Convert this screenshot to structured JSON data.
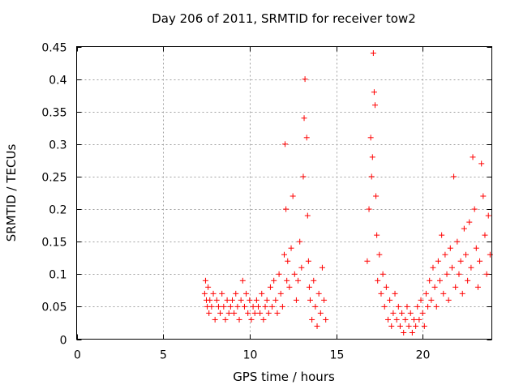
{
  "chart_data": {
    "type": "scatter",
    "title": "Day 206 of 2011, SRMTID for receiver tow2",
    "xlabel": "GPS time / hours",
    "ylabel": "SRMTID / TECUs",
    "xlim": [
      0,
      24
    ],
    "ylim": [
      0,
      0.45
    ],
    "xticks": [
      0,
      5,
      10,
      15,
      20
    ],
    "yticks": [
      0,
      0.05,
      0.1,
      0.15,
      0.2,
      0.25,
      0.3,
      0.35,
      0.4,
      0.45
    ],
    "grid": true,
    "marker": "+",
    "series": [
      {
        "name": "SRMTID tow2",
        "color": "#ff0000",
        "x": [
          7.4,
          7.45,
          7.5,
          7.55,
          7.6,
          7.65,
          7.7,
          7.8,
          7.9,
          8.0,
          8.1,
          8.2,
          8.3,
          8.4,
          8.5,
          8.6,
          8.7,
          8.8,
          8.9,
          9.0,
          9.1,
          9.2,
          9.3,
          9.4,
          9.5,
          9.6,
          9.7,
          9.8,
          9.9,
          10.0,
          10.1,
          10.2,
          10.3,
          10.4,
          10.5,
          10.6,
          10.7,
          10.8,
          10.9,
          11.0,
          11.1,
          11.2,
          11.3,
          11.4,
          11.5,
          11.6,
          11.7,
          11.8,
          11.9,
          12.0,
          12.05,
          12.1,
          12.15,
          12.2,
          12.3,
          12.4,
          12.5,
          12.6,
          12.7,
          12.8,
          12.9,
          13.0,
          13.1,
          13.15,
          13.2,
          13.3,
          13.35,
          13.4,
          13.45,
          13.5,
          13.6,
          13.7,
          13.8,
          13.9,
          14.0,
          14.1,
          14.2,
          14.3,
          14.4,
          16.8,
          16.9,
          17.0,
          17.05,
          17.1,
          17.15,
          17.2,
          17.25,
          17.3,
          17.35,
          17.4,
          17.5,
          17.6,
          17.7,
          17.8,
          17.9,
          18.0,
          18.1,
          18.2,
          18.3,
          18.4,
          18.5,
          18.6,
          18.7,
          18.8,
          18.9,
          19.0,
          19.1,
          19.2,
          19.3,
          19.4,
          19.5,
          19.6,
          19.7,
          19.8,
          19.9,
          20.0,
          20.1,
          20.2,
          20.3,
          20.4,
          20.5,
          20.6,
          20.7,
          20.8,
          20.9,
          21.0,
          21.1,
          21.2,
          21.3,
          21.4,
          21.5,
          21.6,
          21.7,
          21.8,
          21.9,
          22.0,
          22.1,
          22.2,
          22.3,
          22.4,
          22.5,
          22.6,
          22.7,
          22.8,
          22.9,
          23.0,
          23.1,
          23.2,
          23.3,
          23.4,
          23.5,
          23.6,
          23.7,
          23.8,
          23.9
        ],
        "y": [
          0.07,
          0.09,
          0.06,
          0.05,
          0.08,
          0.04,
          0.06,
          0.05,
          0.07,
          0.03,
          0.06,
          0.05,
          0.04,
          0.07,
          0.05,
          0.03,
          0.06,
          0.04,
          0.05,
          0.06,
          0.04,
          0.07,
          0.05,
          0.03,
          0.06,
          0.09,
          0.05,
          0.07,
          0.04,
          0.06,
          0.03,
          0.05,
          0.04,
          0.06,
          0.05,
          0.04,
          0.07,
          0.03,
          0.05,
          0.06,
          0.04,
          0.08,
          0.05,
          0.09,
          0.06,
          0.04,
          0.1,
          0.07,
          0.05,
          0.13,
          0.3,
          0.2,
          0.09,
          0.12,
          0.08,
          0.14,
          0.22,
          0.1,
          0.06,
          0.09,
          0.15,
          0.11,
          0.25,
          0.34,
          0.4,
          0.31,
          0.19,
          0.12,
          0.08,
          0.06,
          0.03,
          0.09,
          0.05,
          0.02,
          0.07,
          0.04,
          0.11,
          0.06,
          0.03,
          0.12,
          0.2,
          0.31,
          0.25,
          0.28,
          0.44,
          0.38,
          0.36,
          0.22,
          0.16,
          0.09,
          0.13,
          0.07,
          0.1,
          0.05,
          0.08,
          0.03,
          0.06,
          0.02,
          0.04,
          0.07,
          0.03,
          0.05,
          0.02,
          0.04,
          0.01,
          0.03,
          0.05,
          0.02,
          0.04,
          0.01,
          0.03,
          0.02,
          0.05,
          0.03,
          0.06,
          0.04,
          0.02,
          0.07,
          0.05,
          0.09,
          0.06,
          0.11,
          0.08,
          0.05,
          0.12,
          0.09,
          0.16,
          0.07,
          0.13,
          0.1,
          0.06,
          0.14,
          0.11,
          0.25,
          0.08,
          0.15,
          0.1,
          0.12,
          0.07,
          0.17,
          0.13,
          0.09,
          0.18,
          0.11,
          0.28,
          0.2,
          0.14,
          0.08,
          0.12,
          0.27,
          0.22,
          0.16,
          0.1,
          0.19,
          0.13
        ]
      }
    ]
  }
}
